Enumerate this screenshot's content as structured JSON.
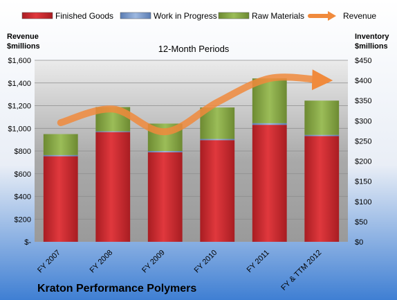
{
  "chart_data": {
    "type": "bar",
    "stacked": true,
    "subtitle": "12-Month Periods",
    "company": "Kraton Performance Polymers",
    "left_axis_title": [
      "Revenue",
      "$millions"
    ],
    "right_axis_title": [
      "Inventory",
      "$millions"
    ],
    "categories": [
      "FY 2007",
      "FY 2008",
      "FY 2009",
      "FY 2010",
      "FY 2011",
      "FY & TTM 2012"
    ],
    "series": [
      {
        "name": "Finished Goods",
        "axis": "right",
        "kind": "bar",
        "color": "#d42a2f",
        "values": [
          212,
          272,
          222,
          252,
          290,
          262
        ]
      },
      {
        "name": "Work in Progress",
        "axis": "right",
        "kind": "bar",
        "color": "#7b9ccd",
        "values": [
          3,
          2,
          3,
          3,
          4,
          3
        ]
      },
      {
        "name": "Raw Materials",
        "axis": "right",
        "kind": "bar",
        "color": "#8fb04c",
        "values": [
          52,
          60,
          68,
          78,
          111,
          85
        ]
      },
      {
        "name": "Revenue",
        "axis": "left",
        "kind": "line",
        "color": "#f08a3c",
        "values": [
          1050,
          1170,
          970,
          1230,
          1440,
          1425
        ]
      }
    ],
    "left_axis": {
      "min": 0,
      "max": 1600,
      "step": 200,
      "tick_labels": [
        "$-",
        "$200",
        "$400",
        "$600",
        "$800",
        "$1,000",
        "$1,200",
        "$1,400",
        "$1,600"
      ]
    },
    "right_axis": {
      "min": 0,
      "max": 450,
      "step": 50,
      "tick_labels": [
        "$0",
        "$50",
        "$100",
        "$150",
        "$200",
        "$250",
        "$300",
        "$350",
        "$400",
        "$450"
      ]
    },
    "grid": true,
    "legend_position": "top"
  }
}
